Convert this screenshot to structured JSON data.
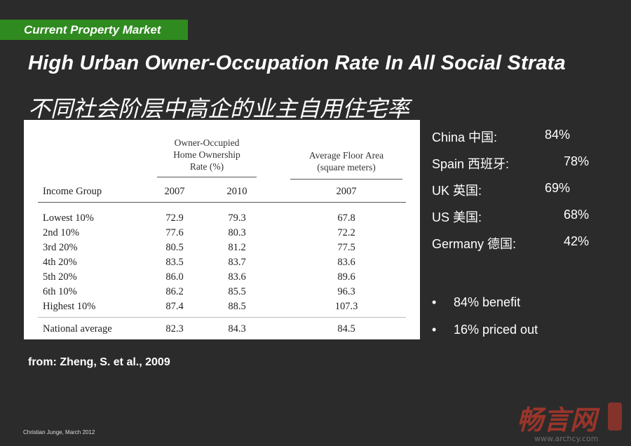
{
  "section_tag": "Current Property Market",
  "title_en": "High Urban Owner-Occupation Rate In All Social Strata",
  "title_zh": "不同社会阶层中高企的业主自用住宅率",
  "table": {
    "group_headers": {
      "ownership": [
        "Owner-Occupied",
        "Home Ownership",
        "Rate (%)"
      ],
      "floor": [
        "Average Floor Area",
        "(square meters)"
      ]
    },
    "columns": [
      "Income Group",
      "2007",
      "2010",
      "2007"
    ],
    "rows": [
      [
        "Lowest 10%",
        "72.9",
        "79.3",
        "67.8"
      ],
      [
        "2nd 10%",
        "77.6",
        "80.3",
        "72.2"
      ],
      [
        "3rd 20%",
        "80.5",
        "81.2",
        "77.5"
      ],
      [
        "4th 20%",
        "83.5",
        "83.7",
        "83.6"
      ],
      [
        "5th 20%",
        "86.0",
        "83.6",
        "89.6"
      ],
      [
        "6th 10%",
        "86.2",
        "85.5",
        "96.3"
      ],
      [
        "Highest 10%",
        "87.4",
        "88.5",
        "107.3"
      ]
    ],
    "total_row": [
      "National average",
      "82.3",
      "84.3",
      "84.5"
    ]
  },
  "source": "from: Zheng, S. et al., 2009",
  "stats": [
    {
      "label": "China 中国:",
      "value": "84%"
    },
    {
      "label": "Spain 西班牙:",
      "value": "78%"
    },
    {
      "label": "UK 英国:",
      "value": "69%"
    },
    {
      "label": "US 美国:",
      "value": "68%"
    },
    {
      "label": "Germany 德国:",
      "value": "42%"
    }
  ],
  "bullets": [
    "84% benefit",
    "16% priced out"
  ],
  "footer": "Christian Junge, March 2012",
  "watermark": {
    "text": "畅言网",
    "url": "www.archcy.com",
    "color": "#c0392b"
  },
  "colors": {
    "background": "#2b2b2b",
    "tag_green": "#2f8a1f",
    "table_bg": "#ffffff"
  }
}
